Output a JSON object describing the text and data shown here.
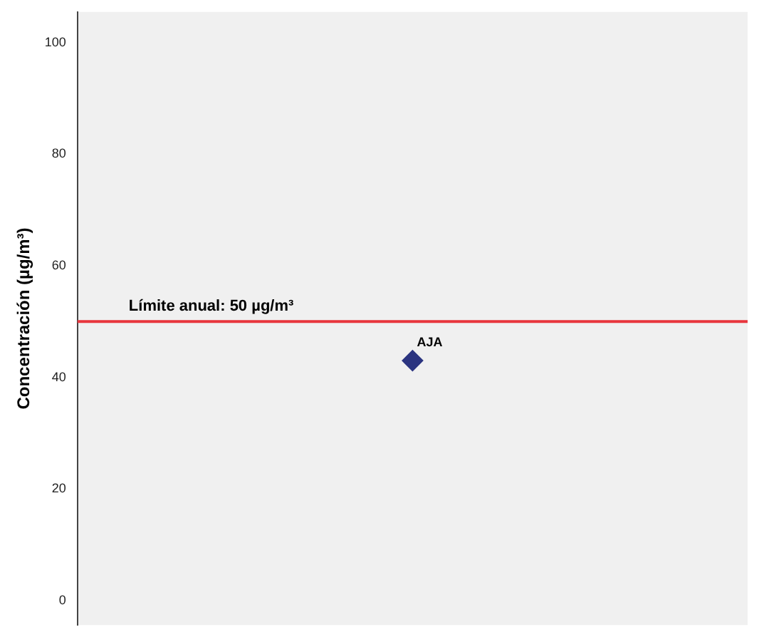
{
  "chart_data": {
    "type": "scatter",
    "ylabel": "Concentración (µg/m³)",
    "categories": [
      null
    ],
    "series": [
      {
        "name": "AJA",
        "color": "#2b3480",
        "values": [
          43
        ]
      }
    ],
    "ylim": [
      -4.4,
      105.5
    ],
    "yticks": [
      0,
      20,
      40,
      60,
      80,
      100
    ],
    "tick_labels": "y",
    "marker": "diamond",
    "grid": false,
    "legend": false,
    "ref_lines": [
      {
        "axis": "y",
        "value": 50,
        "label": "Límite anual: 50 µg/m³",
        "color": "#e8363d"
      }
    ]
  }
}
